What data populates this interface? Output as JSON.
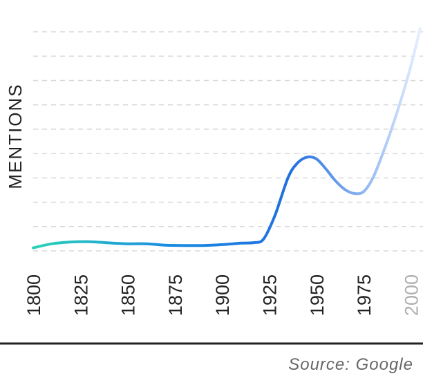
{
  "chart_data": {
    "type": "line",
    "ylabel": "MENTIONS",
    "xlabel": "",
    "x_ticks": [
      "1800",
      "1825",
      "1850",
      "1875",
      "1900",
      "1925",
      "1950",
      "1975",
      "2000"
    ],
    "x": [
      1800,
      1810,
      1820,
      1830,
      1840,
      1850,
      1860,
      1870,
      1880,
      1890,
      1900,
      1910,
      1917,
      1922,
      1928,
      1935,
      1940,
      1945,
      1950,
      1955,
      1960,
      1965,
      1970,
      1975,
      1980,
      1985,
      1990,
      1995,
      2000,
      2005
    ],
    "y": [
      0.0,
      0.7,
      1.0,
      1.05,
      0.85,
      0.7,
      0.7,
      0.45,
      0.4,
      0.4,
      0.55,
      0.8,
      0.9,
      1.5,
      5.5,
      12.0,
      14.5,
      15.5,
      15.2,
      13.5,
      11.5,
      10.0,
      9.3,
      9.6,
      12.0,
      16.0,
      20.5,
      25.5,
      31.0,
      37.5
    ],
    "ylim": [
      -3,
      40
    ],
    "xlim": [
      1800,
      2005
    ],
    "grid": true,
    "gridlines": 10,
    "gradient": [
      "#2ad3b6",
      "#1a8fe0",
      "#1f6fe0",
      "#e6eeff"
    ],
    "source": "Source: Google"
  }
}
